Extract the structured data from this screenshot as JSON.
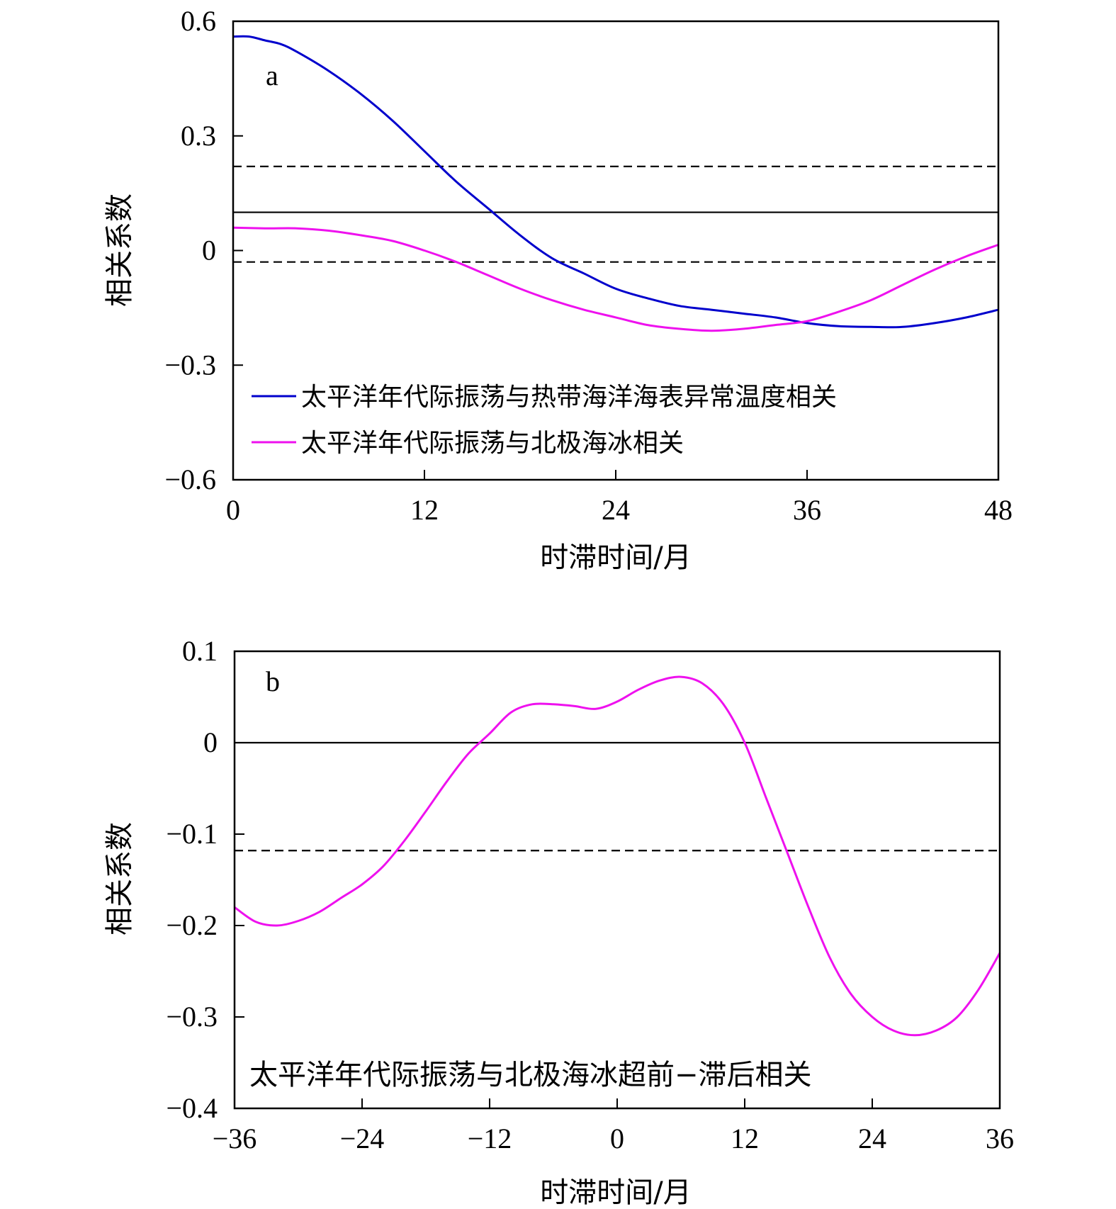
{
  "chart_data": [
    {
      "type": "line",
      "panel_label": "a",
      "xlabel": "时滞时间/月",
      "ylabel": "相关系数",
      "xlim": [
        0,
        48
      ],
      "ylim": [
        -0.6,
        0.6
      ],
      "xticks": [
        0,
        12,
        24,
        36,
        48
      ],
      "xtick_labels": [
        "0",
        "12",
        "24",
        "36",
        "48"
      ],
      "yticks": [
        0.6,
        0.3,
        0,
        -0.3,
        -0.6
      ],
      "ytick_labels": [
        "0.6",
        "0.3",
        "0",
        "−0.3",
        "−0.6"
      ],
      "reference_lines": [
        {
          "y": 0.22,
          "style": "dashed"
        },
        {
          "y": 0.1,
          "style": "solid"
        },
        {
          "y": -0.03,
          "style": "dashed"
        }
      ],
      "legend_position": "bottom-left",
      "series": [
        {
          "name": "太平洋年代际振荡与热带海洋海表异常温度相关",
          "color": "#0000cc",
          "x": [
            0,
            1,
            2,
            3,
            4,
            6,
            8,
            10,
            12,
            14,
            16,
            18,
            20,
            22,
            24,
            26,
            28,
            30,
            32,
            34,
            36,
            38,
            40,
            42,
            44,
            46,
            48
          ],
          "y": [
            0.56,
            0.56,
            0.55,
            0.54,
            0.52,
            0.47,
            0.41,
            0.34,
            0.26,
            0.18,
            0.11,
            0.04,
            -0.02,
            -0.06,
            -0.1,
            -0.125,
            -0.145,
            -0.155,
            -0.165,
            -0.175,
            -0.19,
            -0.198,
            -0.2,
            -0.2,
            -0.19,
            -0.175,
            -0.155
          ]
        },
        {
          "name": "太平洋年代际振荡与北极海冰相关",
          "color": "#ee11ee",
          "x": [
            0,
            2,
            4,
            6,
            8,
            10,
            12,
            14,
            16,
            18,
            20,
            22,
            24,
            26,
            28,
            30,
            32,
            34,
            36,
            38,
            40,
            42,
            44,
            46,
            48
          ],
          "y": [
            0.06,
            0.058,
            0.058,
            0.052,
            0.04,
            0.025,
            0.0,
            -0.03,
            -0.065,
            -0.1,
            -0.13,
            -0.155,
            -0.175,
            -0.195,
            -0.205,
            -0.21,
            -0.205,
            -0.195,
            -0.185,
            -0.16,
            -0.13,
            -0.09,
            -0.05,
            -0.015,
            0.015
          ]
        }
      ]
    },
    {
      "type": "line",
      "panel_label": "b",
      "xlabel": "时滞时间/月",
      "ylabel": "相关系数",
      "xlim": [
        -36,
        36
      ],
      "ylim": [
        -0.4,
        0.1
      ],
      "xticks": [
        -36,
        -24,
        -12,
        0,
        12,
        24,
        36
      ],
      "xtick_labels": [
        "−36",
        "−24",
        "−12",
        "0",
        "12",
        "24",
        "36"
      ],
      "yticks": [
        0.1,
        0,
        -0.1,
        -0.2,
        -0.3,
        -0.4
      ],
      "ytick_labels": [
        "0.1",
        "0",
        "−0.1",
        "−0.2",
        "−0.3",
        "−0.4"
      ],
      "reference_lines": [
        {
          "y": 0,
          "style": "solid"
        },
        {
          "y": -0.118,
          "style": "dashed"
        }
      ],
      "annotation": "太平洋年代际振荡与北极海冰超前−滞后相关",
      "series": [
        {
          "color": "#ee11ee",
          "x": [
            -36,
            -34,
            -32,
            -30,
            -28,
            -26,
            -24,
            -22,
            -20,
            -18,
            -16,
            -14,
            -12,
            -10,
            -8,
            -6,
            -4,
            -2,
            0,
            2,
            4,
            6,
            8,
            10,
            12,
            14,
            16,
            18,
            20,
            22,
            24,
            26,
            28,
            30,
            32,
            34,
            36
          ],
          "y": [
            -0.18,
            -0.196,
            -0.2,
            -0.195,
            -0.185,
            -0.17,
            -0.155,
            -0.135,
            -0.107,
            -0.075,
            -0.042,
            -0.012,
            0.01,
            0.033,
            0.042,
            0.042,
            0.04,
            0.037,
            0.045,
            0.058,
            0.068,
            0.072,
            0.065,
            0.042,
            0.0,
            -0.06,
            -0.12,
            -0.18,
            -0.235,
            -0.275,
            -0.3,
            -0.315,
            -0.32,
            -0.315,
            -0.3,
            -0.27,
            -0.23
          ]
        }
      ]
    }
  ]
}
